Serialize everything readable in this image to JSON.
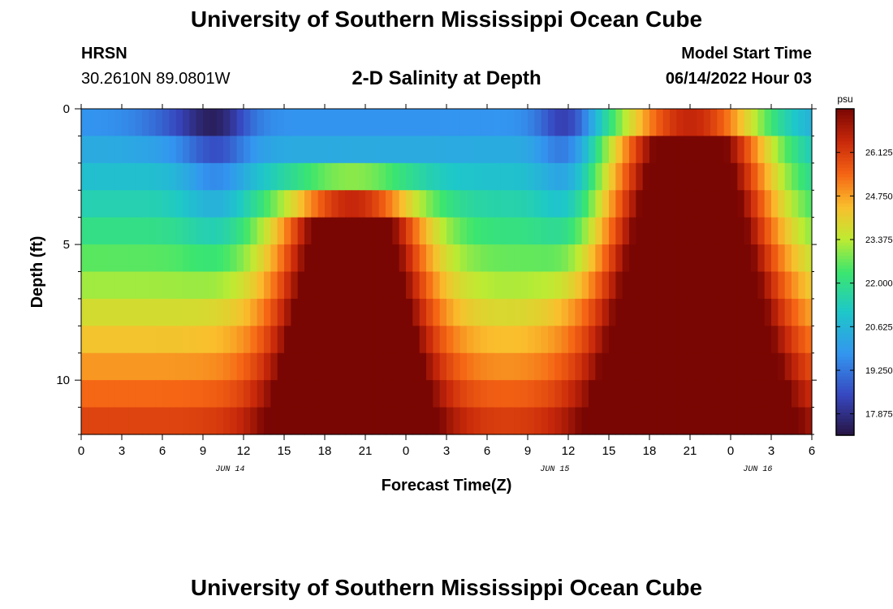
{
  "header": {
    "title": "University of Southern Mississippi Ocean Cube",
    "station": "HRSN",
    "coords": "30.2610N  89.0801W",
    "subtitle": "2-D Salinity at Depth",
    "start_label": "Model Start Time",
    "start_value": "06/14/2022 Hour 03"
  },
  "footer": {
    "title": "University of Southern Mississippi Ocean Cube"
  },
  "chart_data": {
    "type": "heatmap",
    "title": "2-D Salinity at Depth",
    "xlabel": "Forecast Time(Z)",
    "ylabel": "Depth (ft)",
    "x_tick_labels": [
      "0",
      "3",
      "6",
      "9",
      "12",
      "15",
      "18",
      "21",
      "0",
      "3",
      "6",
      "9",
      "12",
      "15",
      "18",
      "21",
      "0",
      "3",
      "6"
    ],
    "x_range_hours": [
      0,
      54
    ],
    "date_labels": [
      {
        "label": "JUN 14",
        "hour": 11
      },
      {
        "label": "JUN 15",
        "hour": 35
      },
      {
        "label": "JUN 16",
        "hour": 50
      }
    ],
    "y_range_ft": [
      0,
      12
    ],
    "y_tick_values": [
      0,
      5,
      10
    ],
    "depth_levels_ft": [
      0,
      1,
      2,
      3,
      4,
      5,
      6,
      7,
      8,
      9,
      10,
      11,
      12
    ],
    "colorbar": {
      "unit": "psu",
      "range": [
        17.2,
        27.5
      ],
      "ticks": [
        "26.125",
        "24.750",
        "23.375",
        "22.000",
        "20.625",
        "19.250",
        "17.875"
      ]
    },
    "description_points": [
      {
        "hour": 10,
        "depth_ft": 1,
        "salinity": 17.4
      },
      {
        "hour": 20,
        "depth_ft": 8,
        "salinity": 26.8
      },
      {
        "hour": 36,
        "depth_ft": 1,
        "salinity": 17.4
      },
      {
        "hour": 45,
        "depth_ft": 10,
        "salinity": 27.3
      }
    ]
  }
}
